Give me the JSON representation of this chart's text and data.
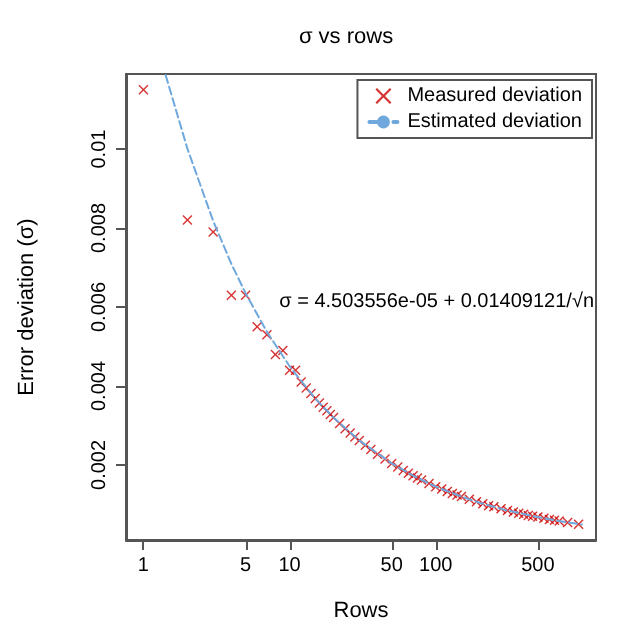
{
  "chart_data": {
    "type": "scatter",
    "title": "σ vs rows",
    "xlabel": "Rows",
    "ylabel": "Error deviation (σ)",
    "annotations": [
      "σ = 4.503556e-05 + 0.01409121/√n"
    ],
    "log": "x",
    "grid": false,
    "legend": "top right",
    "xlim": [
      0.76,
      1250
    ],
    "xticks": [
      1,
      5,
      10,
      50,
      100,
      500
    ],
    "ylim": [
      0.0001,
      0.0119
    ],
    "yticks": [
      0.002,
      0.004,
      0.006,
      0.008,
      0.01
    ],
    "series": [
      {
        "name": "Measured deviation",
        "type": "scatter",
        "color": "#cc0000",
        "marker": "cross",
        "x": [
          1,
          2,
          3,
          4,
          5,
          6,
          7,
          8,
          9,
          10,
          11,
          12,
          13,
          14,
          15,
          16,
          17,
          18,
          19,
          20,
          22,
          24,
          26,
          28,
          30,
          33,
          36,
          40,
          45,
          50,
          55,
          60,
          65,
          70,
          75,
          80,
          90,
          100,
          110,
          120,
          130,
          140,
          150,
          170,
          190,
          210,
          230,
          250,
          280,
          310,
          340,
          370,
          400,
          430,
          460,
          500,
          550,
          600,
          650,
          700,
          800,
          950
        ],
        "values": [
          0.0115,
          0.0082,
          0.0079,
          0.0063,
          0.0063,
          0.0055,
          0.0053,
          0.0048,
          0.0049,
          0.0044,
          0.0044,
          0.0041,
          0.00395,
          0.00381,
          0.00368,
          0.00357,
          0.00346,
          0.00337,
          0.00328,
          0.0032,
          0.00305,
          0.00292,
          0.00281,
          0.00271,
          0.00262,
          0.0025,
          0.00239,
          0.00227,
          0.00215,
          0.00204,
          0.00195,
          0.00186,
          0.00179,
          0.00173,
          0.00167,
          0.00162,
          0.00153,
          0.00145,
          0.00139,
          0.00133,
          0.00128,
          0.00124,
          0.0012,
          0.00113,
          0.00107,
          0.00102,
          0.00097,
          0.00094,
          0.00089,
          0.00085,
          0.00081,
          0.00078,
          0.00075,
          0.00072,
          0.0007,
          0.00068,
          0.00065,
          0.00062,
          0.0006,
          0.00058,
          0.00054,
          0.0005
        ]
      },
      {
        "name": "Estimated deviation",
        "type": "line",
        "color": "#6fa8dc",
        "line_style": "dashed",
        "marker": "none",
        "x": [
          1.42,
          2,
          3,
          4,
          5,
          7,
          10,
          15,
          20,
          30,
          50,
          70,
          100,
          150,
          200,
          300,
          500,
          700,
          1000
        ],
        "values": [
          0.01187,
          0.01001,
          0.00818,
          0.00709,
          0.00635,
          0.00537,
          0.0045,
          0.00368,
          0.0032,
          0.00262,
          0.00204,
          0.00173,
          0.00145,
          0.0012,
          0.00104,
          0.00086,
          0.00068,
          0.00058,
          0.00049
        ]
      }
    ]
  }
}
